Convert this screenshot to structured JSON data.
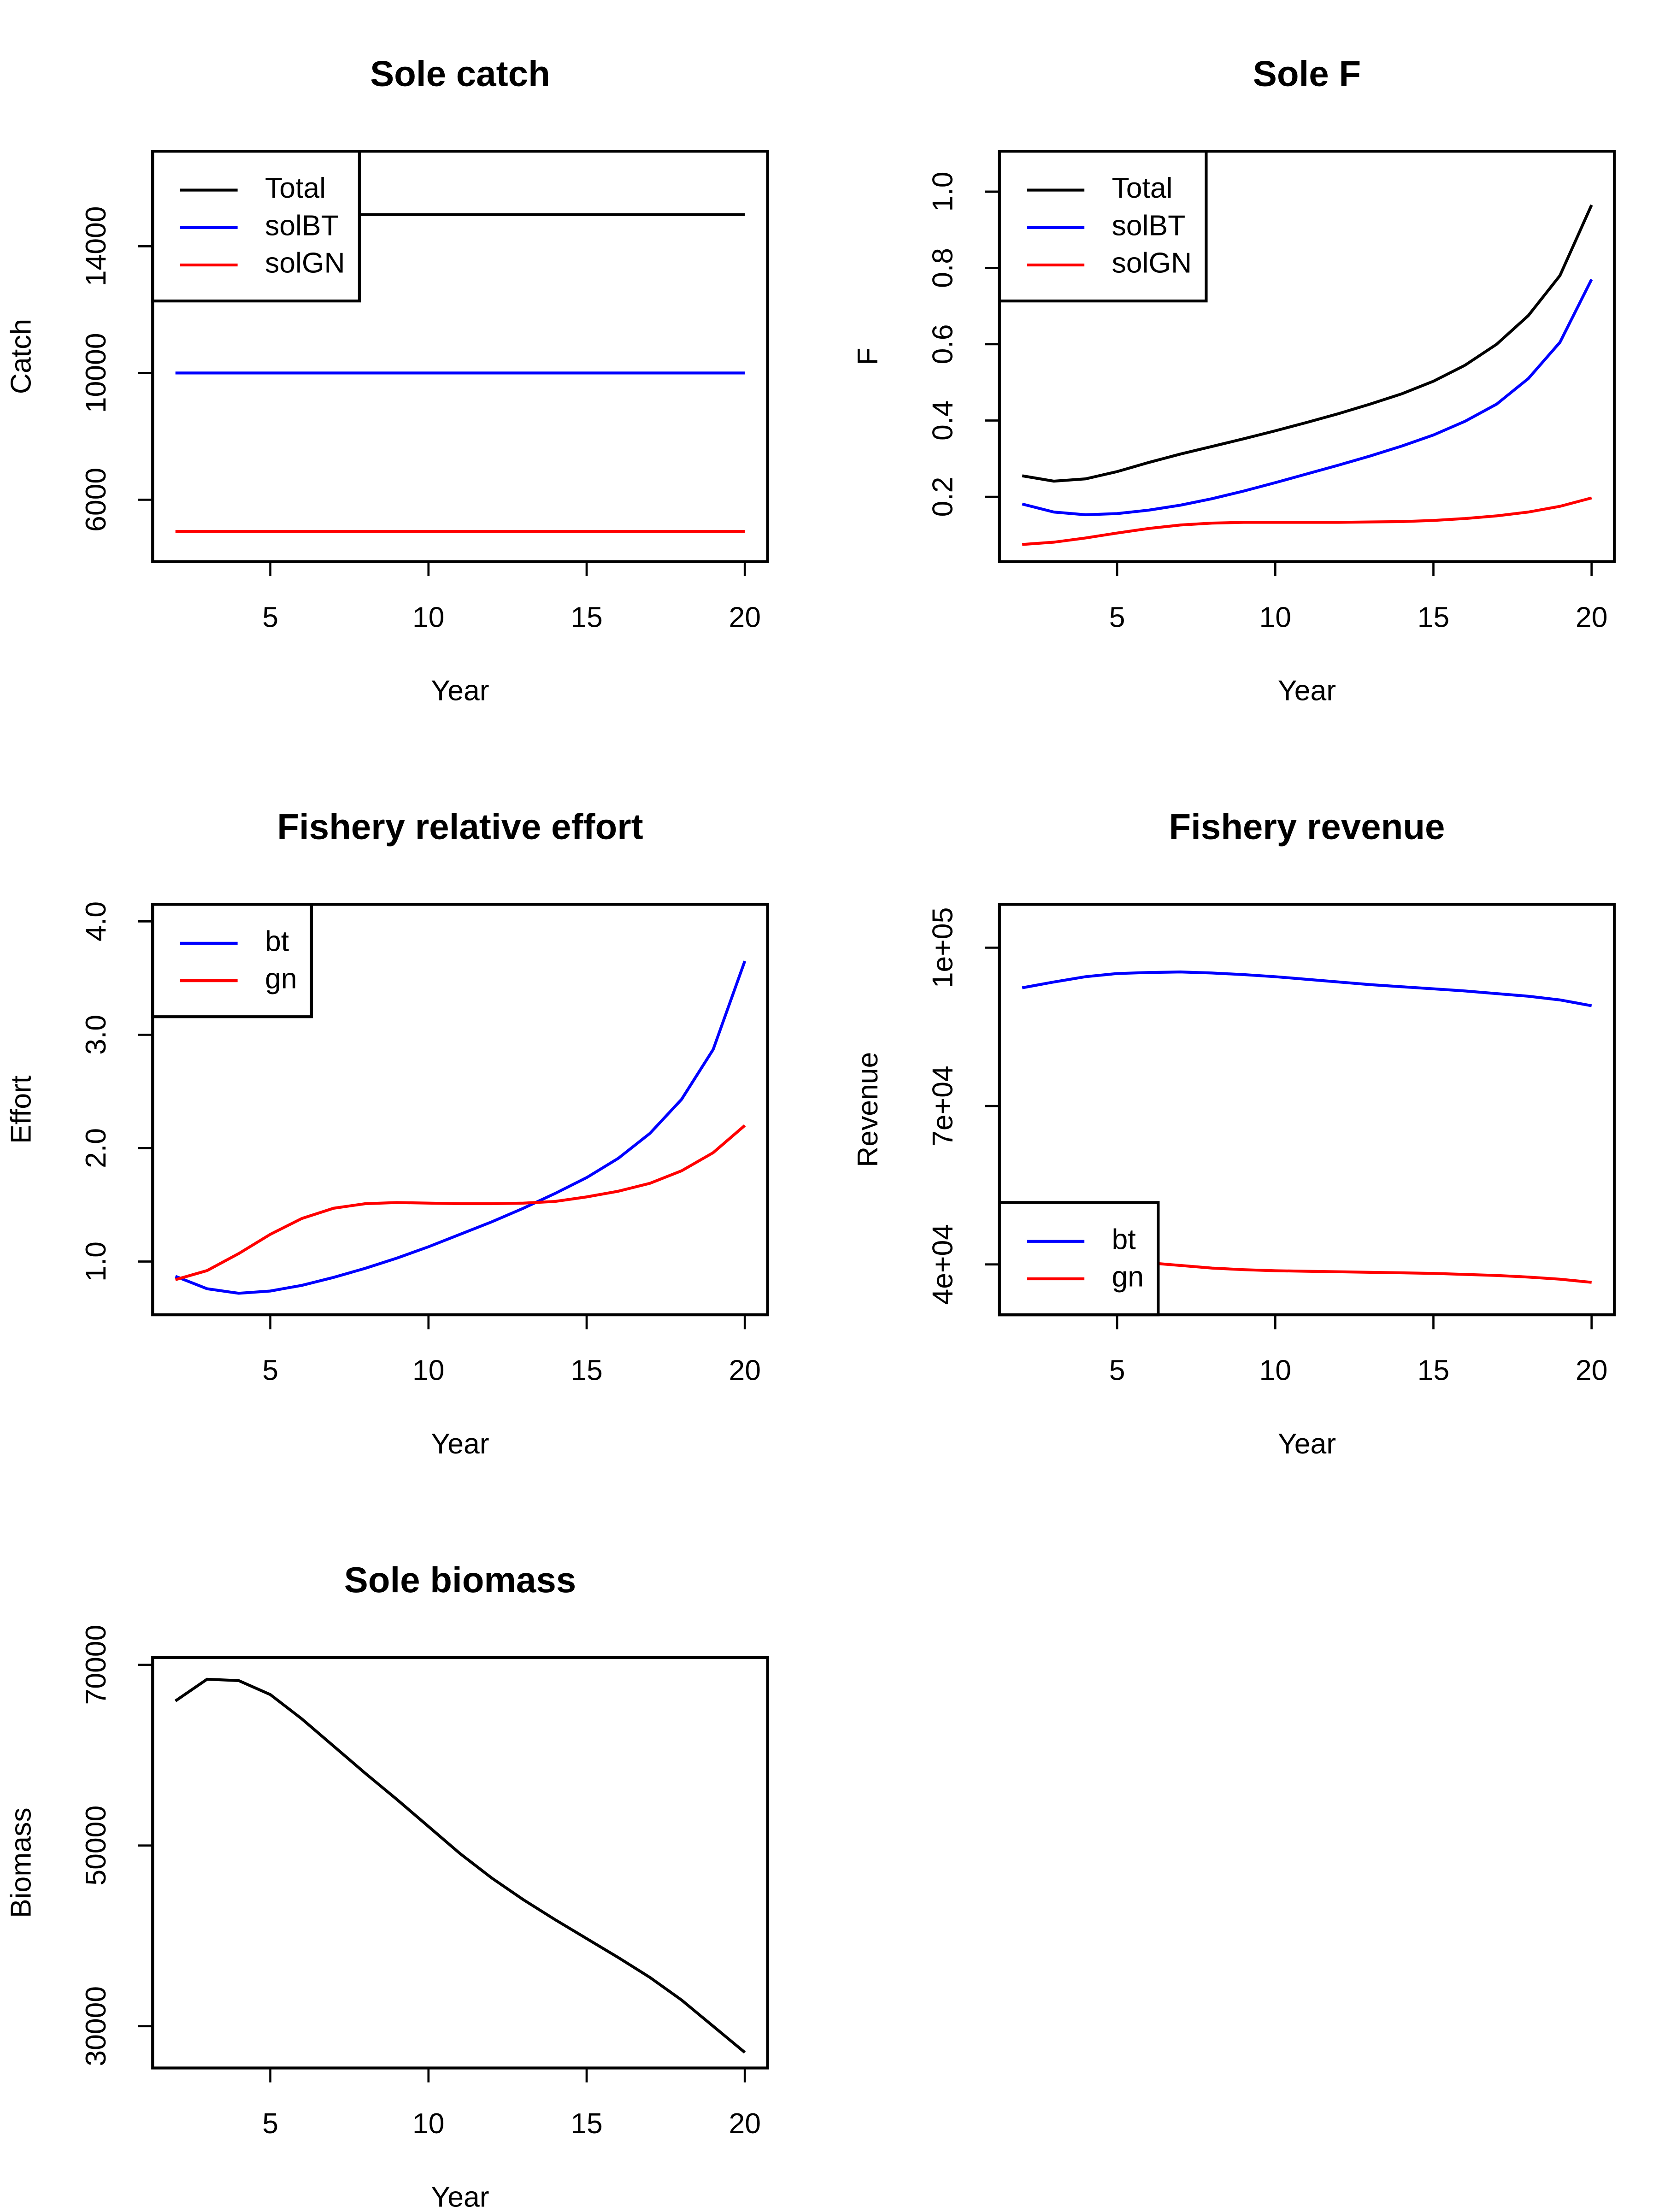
{
  "chart_data": [
    {
      "type": "line",
      "title": "Sole catch",
      "xlabel": "Year",
      "ylabel": "Catch",
      "x": [
        2,
        3,
        4,
        5,
        6,
        7,
        8,
        9,
        10,
        11,
        12,
        13,
        14,
        15,
        16,
        17,
        18,
        19,
        20
      ],
      "xlim": [
        1.28,
        20.72
      ],
      "xticks": [
        5,
        10,
        15,
        20
      ],
      "ylim": [
        4045,
        17000
      ],
      "yticks": [
        6000,
        10000,
        14000
      ],
      "legend": "topleft",
      "series": [
        {
          "name": "Total",
          "color": "#000000",
          "values": [
            15000,
            15000,
            15000,
            15000,
            15000,
            15000,
            15000,
            15000,
            15000,
            15000,
            15000,
            15000,
            15000,
            15000,
            15000,
            15000,
            15000,
            15000,
            15000
          ]
        },
        {
          "name": "solBT",
          "color": "#0000ff",
          "values": [
            10000,
            10000,
            10000,
            10000,
            10000,
            10000,
            10000,
            10000,
            10000,
            10000,
            10000,
            10000,
            10000,
            10000,
            10000,
            10000,
            10000,
            10000,
            10000
          ]
        },
        {
          "name": "solGN",
          "color": "#ff0000",
          "values": [
            5000,
            5000,
            5000,
            5000,
            5000,
            5000,
            5000,
            5000,
            5000,
            5000,
            5000,
            5000,
            5000,
            5000,
            5000,
            5000,
            5000,
            5000,
            5000
          ]
        }
      ]
    },
    {
      "type": "line",
      "title": "Sole F",
      "xlabel": "Year",
      "ylabel": "F",
      "x": [
        2,
        3,
        4,
        5,
        6,
        7,
        8,
        9,
        10,
        11,
        12,
        13,
        14,
        15,
        16,
        17,
        18,
        19,
        20
      ],
      "xlim": [
        1.28,
        20.72
      ],
      "xticks": [
        5,
        10,
        15,
        20
      ],
      "ylim": [
        0.03,
        1.106
      ],
      "yticks": [
        0.2,
        0.4,
        0.6,
        0.8,
        {
          "value": 1,
          "label": "1.0"
        }
      ],
      "legend": "topleft",
      "series": [
        {
          "name": "Total",
          "color": "#000000",
          "values": [
            0.255,
            0.241,
            0.247,
            0.266,
            0.29,
            0.312,
            0.332,
            0.352,
            0.373,
            0.395,
            0.418,
            0.443,
            0.47,
            0.503,
            0.545,
            0.6,
            0.675,
            0.78,
            0.965
          ]
        },
        {
          "name": "solBT",
          "color": "#0000ff",
          "values": [
            0.181,
            0.16,
            0.153,
            0.156,
            0.165,
            0.178,
            0.195,
            0.215,
            0.237,
            0.26,
            0.283,
            0.307,
            0.333,
            0.362,
            0.398,
            0.443,
            0.51,
            0.605,
            0.77
          ]
        },
        {
          "name": "solGN",
          "color": "#ff0000",
          "values": [
            0.075,
            0.081,
            0.092,
            0.105,
            0.117,
            0.126,
            0.131,
            0.133,
            0.133,
            0.133,
            0.133,
            0.134,
            0.135,
            0.138,
            0.143,
            0.15,
            0.16,
            0.175,
            0.197
          ]
        }
      ]
    },
    {
      "type": "line",
      "title": "Fishery relative effort",
      "xlabel": "Year",
      "ylabel": "Effort",
      "x": [
        2,
        3,
        4,
        5,
        6,
        7,
        8,
        9,
        10,
        11,
        12,
        13,
        14,
        15,
        16,
        17,
        18,
        19,
        20
      ],
      "xlim": [
        1.28,
        20.72
      ],
      "xticks": [
        5,
        10,
        15,
        20
      ],
      "ylim": [
        0.53,
        4.15
      ],
      "yticks": [
        {
          "value": 1,
          "label": "1.0"
        },
        {
          "value": 2,
          "label": "2.0"
        },
        {
          "value": 3,
          "label": "3.0"
        },
        {
          "value": 4,
          "label": "4.0"
        }
      ],
      "legend": "topleft",
      "series": [
        {
          "name": "bt",
          "color": "#0000ff",
          "values": [
            0.87,
            0.76,
            0.72,
            0.74,
            0.79,
            0.86,
            0.94,
            1.03,
            1.13,
            1.24,
            1.35,
            1.47,
            1.6,
            1.74,
            1.91,
            2.13,
            2.43,
            2.87,
            3.65
          ]
        },
        {
          "name": "gn",
          "color": "#ff0000",
          "values": [
            0.84,
            0.92,
            1.07,
            1.24,
            1.38,
            1.47,
            1.51,
            1.52,
            1.515,
            1.51,
            1.51,
            1.515,
            1.53,
            1.57,
            1.62,
            1.69,
            1.8,
            1.96,
            2.2
          ]
        }
      ]
    },
    {
      "type": "line",
      "title": "Fishery revenue",
      "xlabel": "Year",
      "ylabel": "Revenue",
      "x": [
        2,
        3,
        4,
        5,
        6,
        7,
        8,
        9,
        10,
        11,
        12,
        13,
        14,
        15,
        16,
        17,
        18,
        19,
        20
      ],
      "xlim": [
        1.28,
        20.72
      ],
      "xticks": [
        5,
        10,
        15,
        20
      ],
      "ylim": [
        30450,
        108200
      ],
      "yticks": [
        {
          "value": 40000,
          "label": "4e+04"
        },
        {
          "value": 70000,
          "label": "7e+04"
        },
        {
          "value": 100000,
          "label": "1e+05"
        }
      ],
      "legend": "bottomleft",
      "series": [
        {
          "name": "bt",
          "color": "#0000ff",
          "values": [
            92400,
            93500,
            94500,
            95100,
            95300,
            95400,
            95200,
            94900,
            94500,
            94000,
            93500,
            93000,
            92600,
            92200,
            91800,
            91300,
            90800,
            90100,
            89000
          ]
        },
        {
          "name": "gn",
          "color": "#ff0000",
          "values": [
            42500,
            41800,
            41200,
            40700,
            40300,
            39800,
            39300,
            39000,
            38800,
            38700,
            38600,
            38500,
            38400,
            38300,
            38100,
            37900,
            37600,
            37200,
            36600
          ]
        }
      ]
    },
    {
      "type": "line",
      "title": "Sole biomass",
      "xlabel": "Year",
      "ylabel": "Biomass",
      "x": [
        2,
        3,
        4,
        5,
        6,
        7,
        8,
        9,
        10,
        11,
        12,
        13,
        14,
        15,
        16,
        17,
        18,
        19,
        20
      ],
      "xlim": [
        1.28,
        20.72
      ],
      "xticks": [
        5,
        10,
        15,
        20
      ],
      "ylim": [
        25375,
        70800
      ],
      "yticks": [
        30000,
        50000,
        70000
      ],
      "series": [
        {
          "color": "#000000",
          "values": [
            66000,
            68400,
            68250,
            66700,
            64000,
            61000,
            58000,
            55100,
            52100,
            49100,
            46400,
            44000,
            41800,
            39700,
            37600,
            35400,
            32900,
            30000,
            27100
          ]
        }
      ]
    }
  ]
}
